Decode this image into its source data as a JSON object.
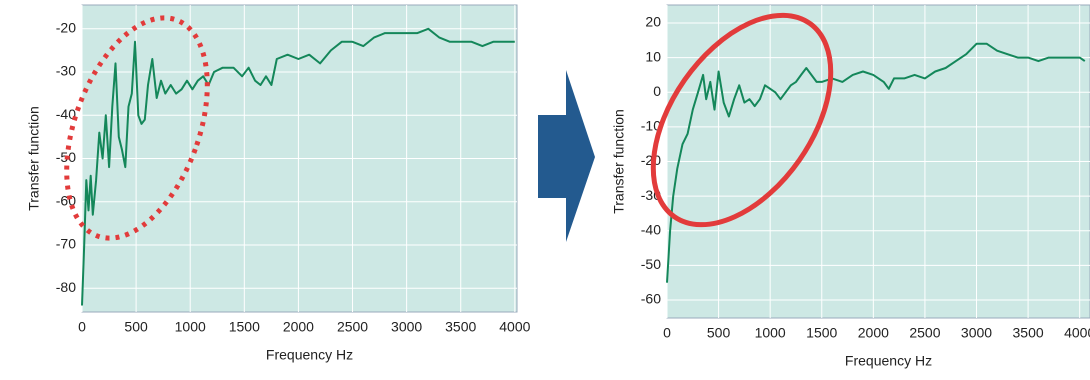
{
  "chart_data": [
    {
      "type": "line",
      "x_label": "Frequency Hz",
      "y_label": "Transfer function",
      "x": [
        0,
        20,
        40,
        60,
        80,
        100,
        130,
        160,
        190,
        220,
        250,
        280,
        310,
        340,
        370,
        400,
        430,
        460,
        490,
        520,
        550,
        580,
        610,
        650,
        690,
        730,
        770,
        820,
        870,
        920,
        970,
        1020,
        1070,
        1120,
        1170,
        1220,
        1300,
        1400,
        1480,
        1540,
        1600,
        1650,
        1700,
        1750,
        1800,
        1900,
        2000,
        2100,
        2200,
        2300,
        2400,
        2500,
        2600,
        2700,
        2800,
        2900,
        3000,
        3100,
        3200,
        3300,
        3400,
        3500,
        3600,
        3700,
        3800,
        3900,
        4000
      ],
      "values": [
        -84,
        -70,
        -55,
        -62,
        -54,
        -63,
        -55,
        -44,
        -50,
        -40,
        -52,
        -38,
        -28,
        -45,
        -48,
        -52,
        -38,
        -35,
        -23,
        -40,
        -42,
        -41,
        -33,
        -27,
        -36,
        -32,
        -35,
        -33,
        -35,
        -34,
        -32,
        -34,
        -32,
        -31,
        -33,
        -30,
        -29,
        -29,
        -31,
        -29,
        -32,
        -33,
        -31,
        -33,
        -27,
        -26,
        -27,
        -26,
        -28,
        -25,
        -23,
        -23,
        -24,
        -22,
        -21,
        -21,
        -21,
        -21,
        -20,
        -22,
        -23,
        -23,
        -23,
        -24,
        -23,
        -23,
        -23
      ],
      "color": "#14875a",
      "grid": true,
      "xlim": [
        0,
        4020
      ],
      "xticks": [
        0,
        500,
        1000,
        1500,
        2000,
        2500,
        3000,
        3500,
        4000
      ],
      "ylim": [
        -85.5,
        -14.5
      ],
      "yticks": [
        -20,
        -30,
        -40,
        -50,
        -60,
        -70,
        -80
      ]
    },
    {
      "type": "line",
      "x_label": "Frequency Hz",
      "y_label": "Transfer function",
      "x": [
        0,
        30,
        60,
        100,
        150,
        200,
        250,
        300,
        350,
        380,
        420,
        460,
        500,
        550,
        600,
        650,
        700,
        750,
        800,
        850,
        900,
        950,
        1000,
        1050,
        1100,
        1150,
        1200,
        1250,
        1300,
        1350,
        1400,
        1450,
        1500,
        1600,
        1700,
        1800,
        1900,
        2000,
        2100,
        2150,
        2200,
        2300,
        2400,
        2500,
        2600,
        2700,
        2800,
        2900,
        3000,
        3100,
        3200,
        3300,
        3400,
        3500,
        3600,
        3700,
        3800,
        3900,
        4000,
        4050
      ],
      "values": [
        -55,
        -40,
        -30,
        -22,
        -15,
        -12,
        -5,
        0,
        5,
        -2,
        3,
        -5,
        6,
        -3,
        -7,
        -2,
        2,
        -3,
        -2,
        -4,
        -2,
        2,
        1,
        0,
        -2,
        0,
        2,
        3,
        5,
        7,
        5,
        3,
        3,
        4,
        3,
        5,
        6,
        5,
        3,
        1,
        4,
        4,
        5,
        4,
        6,
        7,
        9,
        11,
        14,
        14,
        12,
        11,
        10,
        10,
        9,
        10,
        10,
        10,
        10,
        9
      ],
      "color": "#14875a",
      "grid": true,
      "xlim": [
        0,
        4100
      ],
      "xticks": [
        0,
        500,
        1000,
        1500,
        2000,
        2500,
        3000,
        3500,
        4000
      ],
      "ylim": [
        -65.2,
        25.2
      ],
      "yticks": [
        20,
        10,
        0,
        -10,
        -20,
        -30,
        -40,
        -50,
        -60
      ]
    }
  ]
}
